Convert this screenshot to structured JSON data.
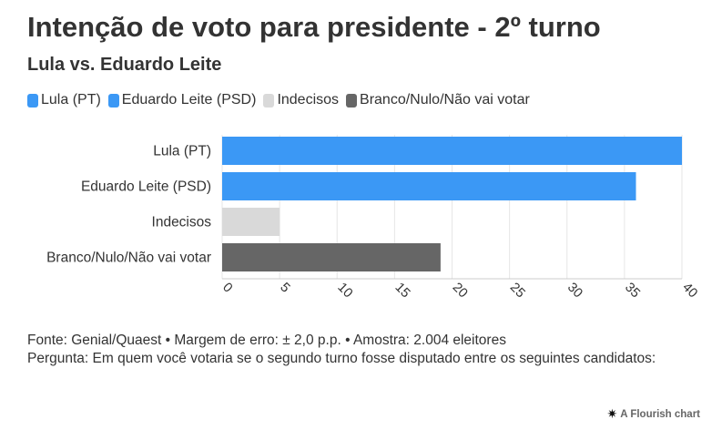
{
  "title": "Intenção de voto para presidente - 2º turno",
  "subtitle": "Lula vs. Eduardo Leite",
  "legend": [
    {
      "label": "Lula (PT)",
      "color": "#3b98f5"
    },
    {
      "label": "Eduardo Leite (PSD)",
      "color": "#3b98f5"
    },
    {
      "label": "Indecisos",
      "color": "#d9d9d9"
    },
    {
      "label": "Branco/Nulo/Não vai votar",
      "color": "#666666"
    }
  ],
  "chart_data": {
    "type": "bar",
    "orientation": "horizontal",
    "categories": [
      "Lula (PT)",
      "Eduardo Leite (PSD)",
      "Indecisos",
      "Branco/Nulo/Não vai votar"
    ],
    "values": [
      40,
      36,
      5,
      19
    ],
    "colors": [
      "#3b98f5",
      "#3b98f5",
      "#d9d9d9",
      "#666666"
    ],
    "xlim": [
      0,
      40
    ],
    "xticks": [
      0,
      5,
      10,
      15,
      20,
      25,
      30,
      35,
      40
    ],
    "grid": true,
    "legend_position": "top-left"
  },
  "footer": {
    "source": "Fonte: Genial/Quaest • Margem de erro: ± 2,0 p.p. • Amostra: 2.004 eleitores",
    "question": "Pergunta: Em quem você votaria se o segundo turno fosse disputado entre os seguintes candidatos:"
  },
  "credit": {
    "icon": "flourish-asterisk-icon",
    "label": "A Flourish chart"
  }
}
